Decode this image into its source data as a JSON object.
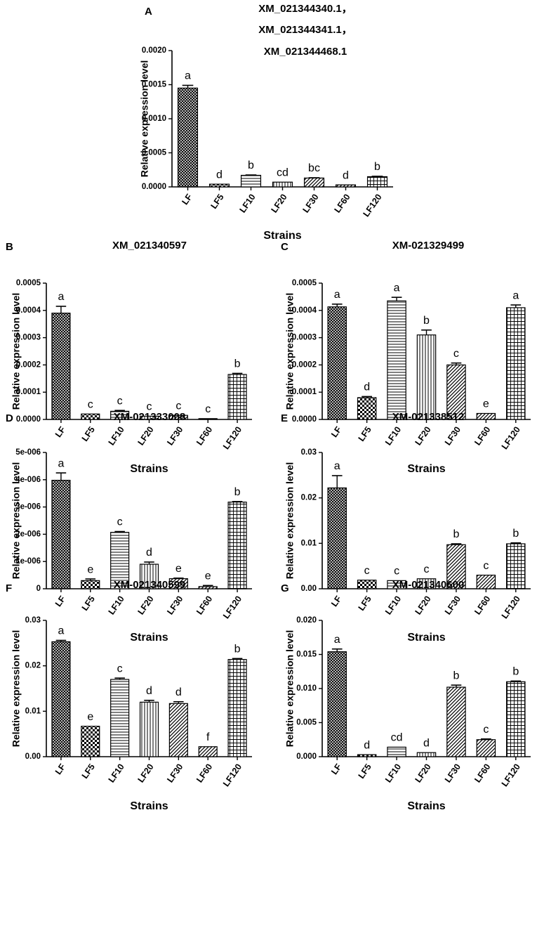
{
  "chart_data": [
    {
      "panel": "A",
      "type": "bar",
      "title_lines": [
        "XM_021344340.1，",
        "XM_021344341.1，",
        "XM_021344468.1"
      ],
      "xlabel": "Strains",
      "ylabel": "Relative expression level",
      "categories": [
        "LF",
        "LF5",
        "LF10",
        "LF20",
        "LF30",
        "LF60",
        "LF120"
      ],
      "values": [
        0.00145,
        4e-05,
        0.00017,
        7e-05,
        0.00013,
        3e-05,
        0.00015
      ],
      "errors": [
        4e-05,
        0.0,
        5e-06,
        0.0,
        4e-06,
        0.0,
        6e-06
      ],
      "letters": [
        "a",
        "d",
        "b",
        "cd",
        "bc",
        "d",
        "b"
      ],
      "ylim": [
        0,
        0.002
      ],
      "yticks": [
        "0.0000",
        "0.0005",
        "0.0010",
        "0.0015",
        "0.0020"
      ]
    },
    {
      "panel": "B",
      "type": "bar",
      "title_lines": [
        "XM_021340597"
      ],
      "xlabel": "Strains",
      "ylabel": "Relative expression level",
      "categories": [
        "LF",
        "LF5",
        "LF10",
        "LF20",
        "LF30",
        "LF60",
        "LF120"
      ],
      "values": [
        0.00039,
        2e-05,
        3e-05,
        1.2e-05,
        1.5e-05,
        2e-06,
        0.000165
      ],
      "errors": [
        2.5e-05,
        0.0,
        3e-06,
        0.0,
        0.0,
        0.0,
        4e-06
      ],
      "letters": [
        "a",
        "c",
        "c",
        "c",
        "c",
        "c",
        "b"
      ],
      "ylim": [
        0,
        0.0005
      ],
      "yticks": [
        "0.0000",
        "0.0001",
        "0.0002",
        "0.0003",
        "0.0004",
        "0.0005"
      ]
    },
    {
      "panel": "C",
      "type": "bar",
      "title_lines": [
        "XM-021329499"
      ],
      "xlabel": "Strains",
      "ylabel": "Relative expression level",
      "categories": [
        "LF",
        "LF5",
        "LF10",
        "LF20",
        "LF30",
        "LF60",
        "LF120"
      ],
      "values": [
        0.000413,
        8e-05,
        0.000435,
        0.00031,
        0.0002,
        2.2e-05,
        0.00041
      ],
      "errors": [
        1e-05,
        4e-06,
        1.3e-05,
        1.8e-05,
        7e-06,
        0.0,
        1e-05
      ],
      "letters": [
        "a",
        "d",
        "a",
        "b",
        "c",
        "e",
        "a"
      ],
      "ylim": [
        0,
        0.0005
      ],
      "yticks": [
        "0.0000",
        "0.0001",
        "0.0002",
        "0.0003",
        "0.0004",
        "0.0005"
      ]
    },
    {
      "panel": "D",
      "type": "bar",
      "title_lines": [
        "XM-021333008"
      ],
      "xlabel": "Strains",
      "ylabel": "Relative expression level",
      "categories": [
        "LF",
        "LF5",
        "LF10",
        "LF20",
        "LF30",
        "LF60",
        "LF120"
      ],
      "values": [
        3.98e-06,
        3e-07,
        2.07e-06,
        9e-07,
        3.7e-07,
        8e-08,
        3.18e-06
      ],
      "errors": [
        2.7e-07,
        6e-08,
        3e-08,
        8e-08,
        2e-08,
        4e-08,
        2e-08
      ],
      "letters": [
        "a",
        "e",
        "c",
        "d",
        "e",
        "e",
        "b"
      ],
      "ylim": [
        0,
        5e-06
      ],
      "yticks": [
        "0",
        "1e-006",
        "2e-006",
        "3e-006",
        "4e-006",
        "5e-006"
      ]
    },
    {
      "panel": "E",
      "type": "bar",
      "title_lines": [
        "XM-021338512"
      ],
      "xlabel": "Strains",
      "ylabel": "Relative expression level",
      "categories": [
        "LF",
        "LF5",
        "LF10",
        "LF20",
        "LF30",
        "LF60",
        "LF120"
      ],
      "values": [
        0.0222,
        0.0019,
        0.0018,
        0.0022,
        0.0097,
        0.003,
        0.0099
      ],
      "errors": [
        0.0027,
        0.0,
        0.0,
        0.0,
        0.0002,
        0.0,
        0.0002
      ],
      "letters": [
        "a",
        "c",
        "c",
        "c",
        "b",
        "c",
        "b"
      ],
      "ylim": [
        0,
        0.03
      ],
      "yticks": [
        "0.00",
        "0.01",
        "0.02",
        "0.03"
      ]
    },
    {
      "panel": "F",
      "type": "bar",
      "title_lines": [
        "XM-021340599"
      ],
      "xlabel": "Strains",
      "ylabel": "Relative expression level",
      "categories": [
        "LF",
        "LF5",
        "LF10",
        "LF20",
        "LF30",
        "LF60",
        "LF120"
      ],
      "values": [
        0.0253,
        0.0067,
        0.017,
        0.012,
        0.0117,
        0.0022,
        0.0214
      ],
      "errors": [
        0.0003,
        0.0,
        0.0003,
        0.0004,
        0.0004,
        0.0,
        0.0002
      ],
      "letters": [
        "a",
        "e",
        "c",
        "d",
        "d",
        "f",
        "b"
      ],
      "ylim": [
        0,
        0.03
      ],
      "yticks": [
        "0.00",
        "0.01",
        "0.02",
        "0.03"
      ]
    },
    {
      "panel": "G",
      "type": "bar",
      "title_lines": [
        "XM-021340600"
      ],
      "xlabel": "Strains",
      "ylabel": "Relative expression level",
      "categories": [
        "LF",
        "LF5",
        "LF10",
        "LF20",
        "LF30",
        "LF60",
        "LF120"
      ],
      "values": [
        0.0154,
        0.0003,
        0.0014,
        0.0006,
        0.0102,
        0.0025,
        0.011
      ],
      "errors": [
        0.0004,
        0.0,
        0.0,
        0.0,
        0.0003,
        0.0001,
        0.0001
      ],
      "letters": [
        "a",
        "d",
        "cd",
        "d",
        "b",
        "c",
        "b"
      ],
      "ylim": [
        0,
        0.02
      ],
      "yticks": [
        "0.000",
        "0.005",
        "0.010",
        "0.015",
        "0.020"
      ]
    }
  ],
  "patterns": [
    "crosshatch",
    "checker",
    "hlines",
    "vlines",
    "diagonal",
    "diagonal",
    "grid"
  ]
}
